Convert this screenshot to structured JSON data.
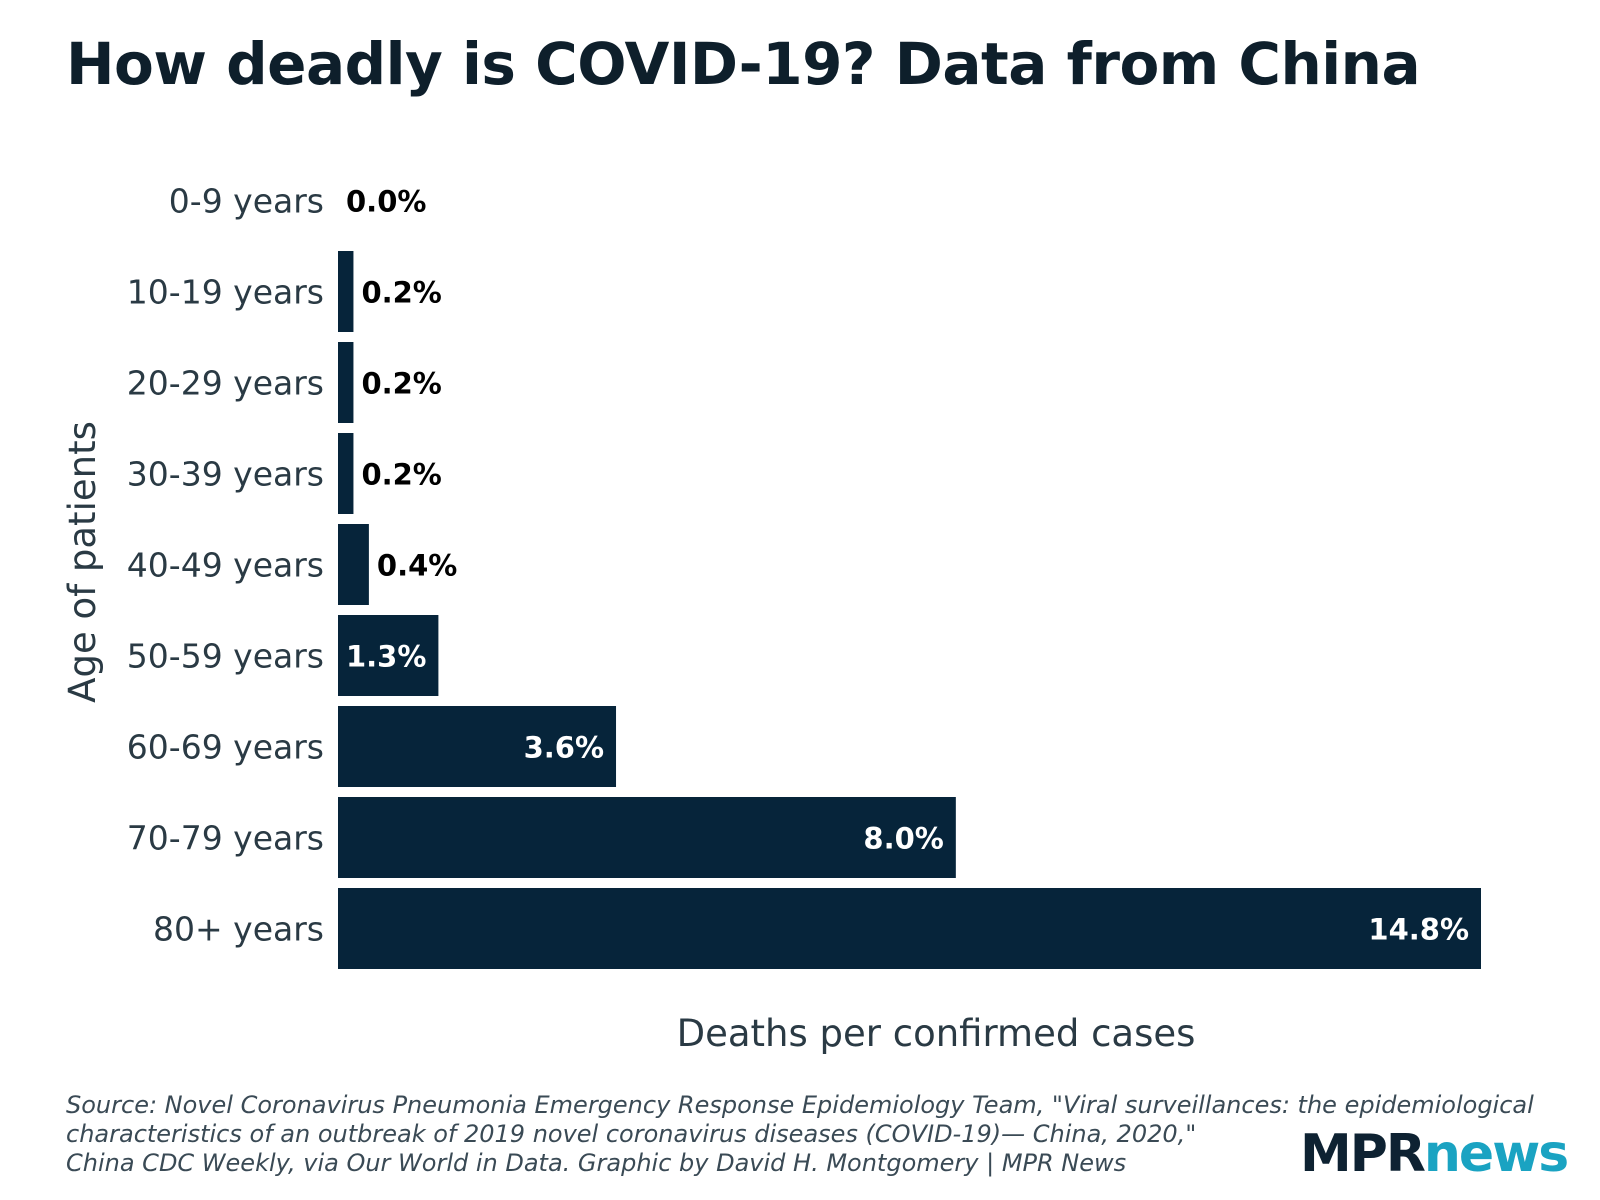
{
  "title": "How deadly is COVID-19? Data from China",
  "chart_data": {
    "type": "bar",
    "orientation": "horizontal",
    "title": "How deadly is COVID-19? Data from China",
    "xlabel": "Deaths per confirmed cases",
    "ylabel": "Age of patients",
    "categories": [
      "0-9 years",
      "10-19 years",
      "20-29 years",
      "30-39 years",
      "40-49 years",
      "50-59 years",
      "60-69 years",
      "70-79 years",
      "80+ years"
    ],
    "values": [
      0.0,
      0.2,
      0.2,
      0.2,
      0.4,
      1.3,
      3.6,
      8.0,
      14.8
    ],
    "value_labels": [
      "0.0%",
      "0.2%",
      "0.2%",
      "0.2%",
      "0.4%",
      "1.3%",
      "3.6%",
      "8.0%",
      "14.8%"
    ],
    "xlim": [
      0,
      14.8
    ],
    "unit": "%",
    "grid": false,
    "bar_color": "#06243a"
  },
  "source": {
    "line1": "Source: Novel Coronavirus Pneumonia Emergency Response Epidemiology Team, \"Viral surveillances: the epidemiological",
    "line2": "characteristics of an outbreak of 2019 novel coronavirus diseases (COVID-19)— China, 2020,\"",
    "line3": "China CDC Weekly, via Our World in Data. Graphic by David H. Montgomery | MPR News"
  },
  "logo": {
    "part1": "MPR",
    "part2": "news",
    "colors": {
      "part1": "#0e2232",
      "part2": "#1aa3c2"
    }
  }
}
